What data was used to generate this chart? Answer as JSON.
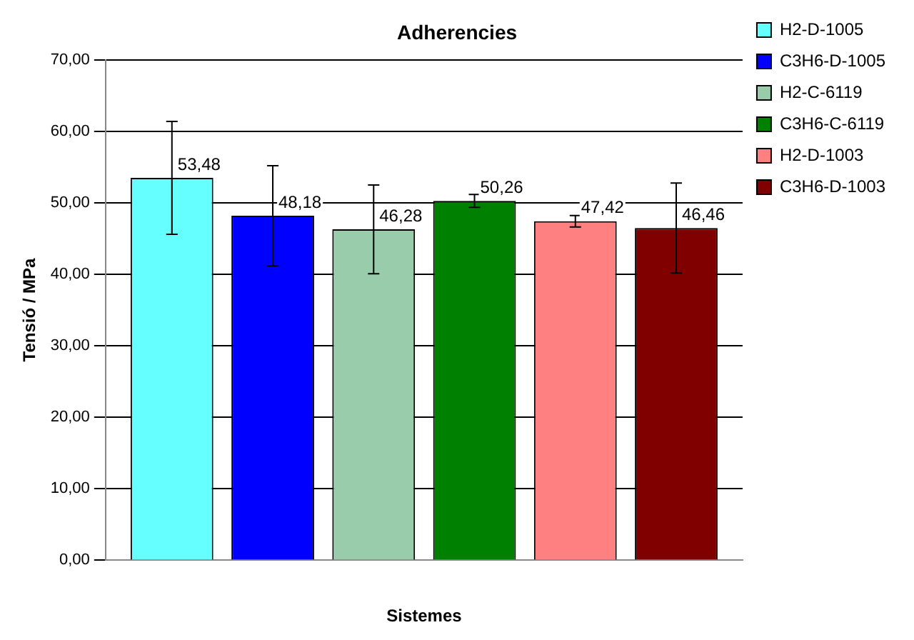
{
  "chart_data": {
    "type": "bar",
    "title": "Adherencies",
    "xlabel": "Sistemes",
    "ylabel": "Tensió / MPa",
    "categories": [
      null
    ],
    "series": [
      {
        "name": "H2-D-1005",
        "color": "#66ffff",
        "values": [
          53.48
        ],
        "errors": [
          7.9
        ],
        "value_labels": [
          "53,48"
        ]
      },
      {
        "name": "C3H6-D-1005",
        "color": "#0000ff",
        "values": [
          48.18
        ],
        "errors": [
          7.0
        ],
        "value_labels": [
          "48,18"
        ]
      },
      {
        "name": "H2-C-6119",
        "color": "#99ccaa",
        "values": [
          46.28
        ],
        "errors": [
          6.2
        ],
        "value_labels": [
          "46,28"
        ]
      },
      {
        "name": "C3H6-C-6119",
        "color": "#008000",
        "values": [
          50.26
        ],
        "errors": [
          0.9
        ],
        "value_labels": [
          "50,26"
        ]
      },
      {
        "name": "H2-D-1003",
        "color": "#ff8080",
        "values": [
          47.42
        ],
        "errors": [
          0.8
        ],
        "value_labels": [
          "47,42"
        ]
      },
      {
        "name": "C3H6-D-1003",
        "color": "#800000",
        "values": [
          46.46
        ],
        "errors": [
          6.3
        ],
        "value_labels": [
          "46,46"
        ]
      }
    ],
    "ylim": [
      0,
      70
    ],
    "yticks": [
      {
        "value": 0,
        "label": "0,00"
      },
      {
        "value": 10,
        "label": "10,00"
      },
      {
        "value": 20,
        "label": "20,00"
      },
      {
        "value": 30,
        "label": "30,00"
      },
      {
        "value": 40,
        "label": "40,00"
      },
      {
        "value": 50,
        "label": "50,00"
      },
      {
        "value": 60,
        "label": "60,00"
      },
      {
        "value": 70,
        "label": "70,00"
      }
    ],
    "grid": "y",
    "legend": "top right"
  }
}
